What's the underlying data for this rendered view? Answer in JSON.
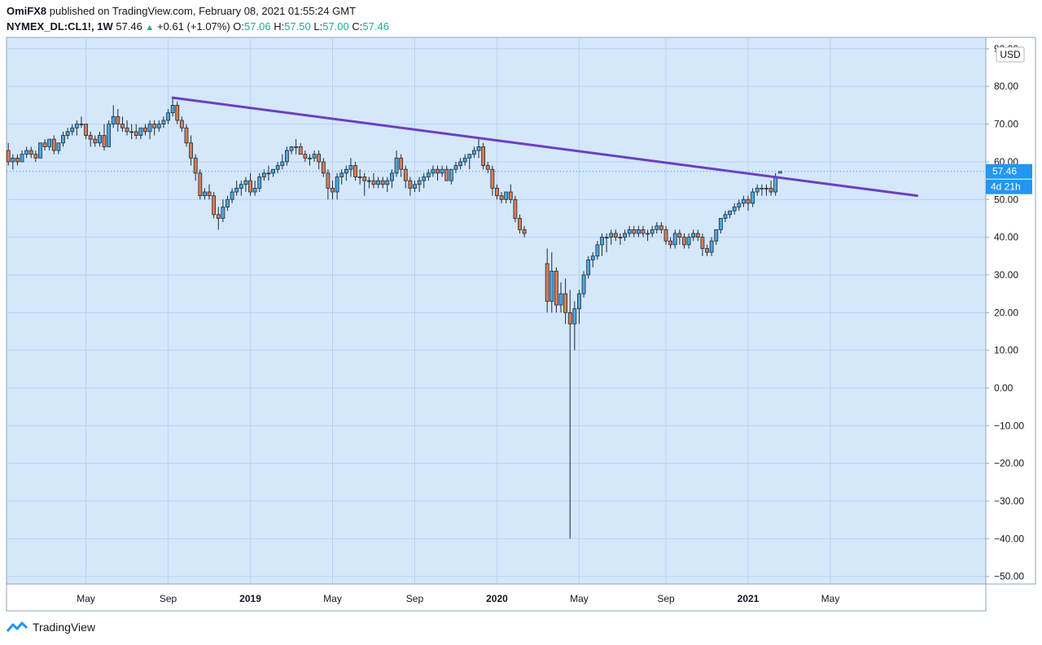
{
  "header": {
    "author": "OmiFX8",
    "published_text": "published on TradingView.com, February 08, 2021 01:55:24 GMT",
    "symbol": "NYMEX_DL:CL1!, 1W",
    "last": "57.46",
    "change_icon": "triangle-up-icon",
    "change": "+0.61 (+1.07%)",
    "o_label": "O:",
    "o_val": "57.06",
    "h_label": "H:",
    "h_val": "57.50",
    "l_label": "L:",
    "l_val": "57.00",
    "c_label": "C:",
    "c_val": "57.46"
  },
  "price_axis": {
    "currency": "USD",
    "last_price_label": "57.46",
    "countdown_label": "4d 21h"
  },
  "footer": {
    "logo_icon": "tradingview-logo-icon",
    "brand": "TradingView"
  },
  "colors": {
    "background": "#d4e7fb",
    "up": "#26a69a",
    "up_fill": "#4ea8e0",
    "down_fill": "#d97d55",
    "trendline": "#6c3fc2",
    "grid": "#b9d3ee",
    "last_price": "#2196f3"
  },
  "chart_data": {
    "type": "candlestick",
    "symbol": "NYMEX_DL:CL1!",
    "interval": "1W",
    "ylim": [
      -52,
      93
    ],
    "y_ticks": [
      90,
      80,
      70,
      60,
      50,
      40,
      30,
      20,
      10,
      0,
      -10,
      -20,
      -30,
      -40,
      -50
    ],
    "y_tick_labels": [
      "90.00",
      "80.00",
      "70.00",
      "60.00",
      "50.00",
      "40.00",
      "30.00",
      "20.00",
      "10.00",
      "0.00",
      "−10.00",
      "−20.00",
      "−30.00",
      "−40.00",
      "−50.00"
    ],
    "x_tick_labels": [
      "May",
      "Sep",
      "2019",
      "May",
      "Sep",
      "2020",
      "May",
      "Sep",
      "2021",
      "May"
    ],
    "x_tick_weeks": [
      17,
      35,
      53,
      71,
      89,
      107,
      125,
      144,
      162,
      180
    ],
    "x_tick_bold": [
      false,
      false,
      true,
      false,
      false,
      true,
      false,
      false,
      true,
      false
    ],
    "last_price": 57.46,
    "trendline": {
      "start": [
        36,
        77
      ],
      "end": [
        199,
        51
      ]
    },
    "candles": [
      [
        63,
        65,
        59,
        60
      ],
      [
        60,
        62,
        58,
        61
      ],
      [
        61,
        62,
        59,
        60
      ],
      [
        60,
        63,
        60,
        62
      ],
      [
        62,
        64,
        61,
        63
      ],
      [
        63,
        64,
        61,
        62
      ],
      [
        62,
        63,
        60,
        61
      ],
      [
        61,
        65,
        61,
        65
      ],
      [
        65,
        66,
        63,
        64
      ],
      [
        64,
        66,
        63,
        66
      ],
      [
        66,
        67,
        62,
        63
      ],
      [
        63,
        65,
        62,
        65
      ],
      [
        65,
        68,
        64,
        67
      ],
      [
        67,
        69,
        66,
        68
      ],
      [
        68,
        70,
        67,
        69
      ],
      [
        69,
        71,
        67,
        70
      ],
      [
        70,
        72,
        69,
        70
      ],
      [
        70,
        70,
        66,
        67
      ],
      [
        67,
        68,
        64,
        66
      ],
      [
        66,
        67,
        64,
        65
      ],
      [
        65,
        68,
        64,
        67
      ],
      [
        67,
        70,
        63,
        64
      ],
      [
        64,
        71,
        64,
        70
      ],
      [
        70,
        75,
        69,
        72
      ],
      [
        72,
        74,
        68,
        70
      ],
      [
        70,
        72,
        68,
        69
      ],
      [
        69,
        71,
        67,
        68
      ],
      [
        68,
        70,
        66,
        68
      ],
      [
        68,
        70,
        66,
        67
      ],
      [
        67,
        69,
        66,
        69
      ],
      [
        69,
        70,
        67,
        68
      ],
      [
        68,
        71,
        66,
        70
      ],
      [
        70,
        71,
        67,
        69
      ],
      [
        69,
        71,
        68,
        70
      ],
      [
        70,
        72,
        69,
        71
      ],
      [
        71,
        74,
        70,
        73
      ],
      [
        73,
        77,
        72,
        75
      ],
      [
        75,
        76,
        70,
        71
      ],
      [
        71,
        72,
        68,
        69
      ],
      [
        69,
        70,
        64,
        65
      ],
      [
        65,
        67,
        59,
        61
      ],
      [
        61,
        62,
        55,
        57
      ],
      [
        57,
        58,
        50,
        51
      ],
      [
        51,
        53,
        50,
        52
      ],
      [
        52,
        54,
        50,
        51
      ],
      [
        51,
        52,
        45,
        46
      ],
      [
        46,
        48,
        42,
        45
      ],
      [
        45,
        50,
        44,
        48
      ],
      [
        48,
        51,
        47,
        50
      ],
      [
        50,
        53,
        49,
        52
      ],
      [
        52,
        55,
        51,
        53
      ],
      [
        53,
        55,
        51,
        54
      ],
      [
        54,
        56,
        52,
        55
      ],
      [
        55,
        57,
        51,
        52
      ],
      [
        52,
        55,
        51,
        53
      ],
      [
        53,
        57,
        52,
        56
      ],
      [
        56,
        58,
        55,
        57
      ],
      [
        57,
        59,
        55,
        57
      ],
      [
        57,
        58,
        56,
        58
      ],
      [
        58,
        60,
        57,
        59
      ],
      [
        59,
        62,
        58,
        60
      ],
      [
        60,
        64,
        59,
        63
      ],
      [
        63,
        64,
        62,
        64
      ],
      [
        64,
        66,
        62,
        64
      ],
      [
        64,
        65,
        62,
        62
      ],
      [
        62,
        63,
        60,
        61
      ],
      [
        61,
        62,
        59,
        61
      ],
      [
        61,
        63,
        60,
        62
      ],
      [
        62,
        63,
        58,
        60
      ],
      [
        60,
        61,
        56,
        57
      ],
      [
        57,
        58,
        50,
        53
      ],
      [
        53,
        55,
        50,
        52
      ],
      [
        52,
        57,
        50,
        56
      ],
      [
        56,
        58,
        54,
        57
      ],
      [
        57,
        59,
        55,
        58
      ],
      [
        58,
        61,
        56,
        59
      ],
      [
        59,
        60,
        55,
        56
      ],
      [
        56,
        58,
        54,
        56
      ],
      [
        56,
        57,
        51,
        55
      ],
      [
        55,
        56,
        53,
        55
      ],
      [
        55,
        57,
        53,
        54
      ],
      [
        54,
        56,
        53,
        55
      ],
      [
        55,
        56,
        53,
        54
      ],
      [
        54,
        56,
        52,
        55
      ],
      [
        55,
        58,
        53,
        57
      ],
      [
        57,
        63,
        56,
        61
      ],
      [
        61,
        62,
        56,
        58
      ],
      [
        58,
        59,
        53,
        55
      ],
      [
        55,
        56,
        51,
        53
      ],
      [
        53,
        55,
        52,
        54
      ],
      [
        54,
        56,
        52,
        55
      ],
      [
        55,
        57,
        53,
        56
      ],
      [
        56,
        58,
        55,
        57
      ],
      [
        57,
        59,
        56,
        58
      ],
      [
        58,
        59,
        55,
        57
      ],
      [
        57,
        59,
        56,
        58
      ],
      [
        58,
        59,
        55,
        55
      ],
      [
        55,
        58,
        54,
        58
      ],
      [
        58,
        60,
        57,
        59
      ],
      [
        59,
        61,
        58,
        60
      ],
      [
        60,
        62,
        59,
        61
      ],
      [
        61,
        62,
        58,
        62
      ],
      [
        62,
        64,
        61,
        63
      ],
      [
        63,
        66,
        61,
        64
      ],
      [
        64,
        65,
        58,
        59
      ],
      [
        59,
        60,
        57,
        58
      ],
      [
        58,
        59,
        51,
        53
      ],
      [
        53,
        54,
        50,
        51
      ],
      [
        51,
        52,
        49,
        50
      ],
      [
        50,
        52,
        49,
        52
      ],
      [
        52,
        54,
        49,
        50
      ],
      [
        50,
        51,
        44,
        45
      ],
      [
        45,
        46,
        41,
        42
      ],
      [
        42,
        43,
        40,
        41
      ],
      null,
      null,
      null,
      null,
      [
        33,
        37,
        20,
        23
      ],
      [
        23,
        36,
        20,
        31
      ],
      [
        31,
        32,
        20,
        22
      ],
      [
        22,
        28,
        20,
        25
      ],
      [
        25,
        29,
        17,
        20
      ],
      [
        20,
        26,
        -40,
        17
      ],
      [
        17,
        23,
        10,
        21
      ],
      [
        21,
        26,
        17,
        25
      ],
      [
        25,
        31,
        24,
        30
      ],
      [
        30,
        35,
        29,
        34
      ],
      [
        34,
        36,
        32,
        35
      ],
      [
        35,
        39,
        34,
        38
      ],
      [
        38,
        41,
        35,
        40
      ],
      [
        40,
        41,
        36,
        40
      ],
      [
        40,
        42,
        38,
        41
      ],
      [
        41,
        42,
        39,
        40
      ],
      [
        40,
        41,
        38,
        40
      ],
      [
        40,
        42,
        39,
        41
      ],
      [
        41,
        43,
        40,
        42
      ],
      [
        42,
        43,
        40,
        41
      ],
      [
        41,
        43,
        40,
        42
      ],
      [
        42,
        43,
        40,
        41
      ],
      [
        41,
        42,
        39,
        41
      ],
      [
        41,
        43,
        40,
        42
      ],
      [
        42,
        44,
        41,
        43
      ],
      [
        43,
        44,
        41,
        42
      ],
      [
        42,
        43,
        38,
        39
      ],
      [
        39,
        40,
        37,
        38
      ],
      [
        38,
        42,
        37,
        41
      ],
      [
        41,
        42,
        38,
        40
      ],
      [
        40,
        41,
        37,
        38
      ],
      [
        38,
        41,
        37,
        40
      ],
      [
        40,
        42,
        39,
        41
      ],
      [
        41,
        42,
        39,
        40
      ],
      [
        40,
        41,
        35,
        37
      ],
      [
        37,
        38,
        35,
        36
      ],
      [
        36,
        40,
        35,
        39
      ],
      [
        39,
        42,
        38,
        42
      ],
      [
        42,
        45,
        41,
        45
      ],
      [
        45,
        47,
        44,
        46
      ],
      [
        46,
        47,
        45,
        47
      ],
      [
        47,
        49,
        46,
        48
      ],
      [
        48,
        50,
        47,
        49
      ],
      [
        49,
        51,
        48,
        50
      ],
      [
        50,
        51,
        47,
        49
      ],
      [
        49,
        53,
        48,
        52
      ],
      [
        52,
        54,
        51,
        53
      ],
      [
        53,
        54,
        51,
        53
      ],
      [
        53,
        54,
        51,
        53
      ],
      [
        53,
        55,
        51,
        52
      ],
      [
        52,
        57,
        51,
        56
      ],
      [
        57,
        57.5,
        57,
        57.46
      ]
    ]
  }
}
